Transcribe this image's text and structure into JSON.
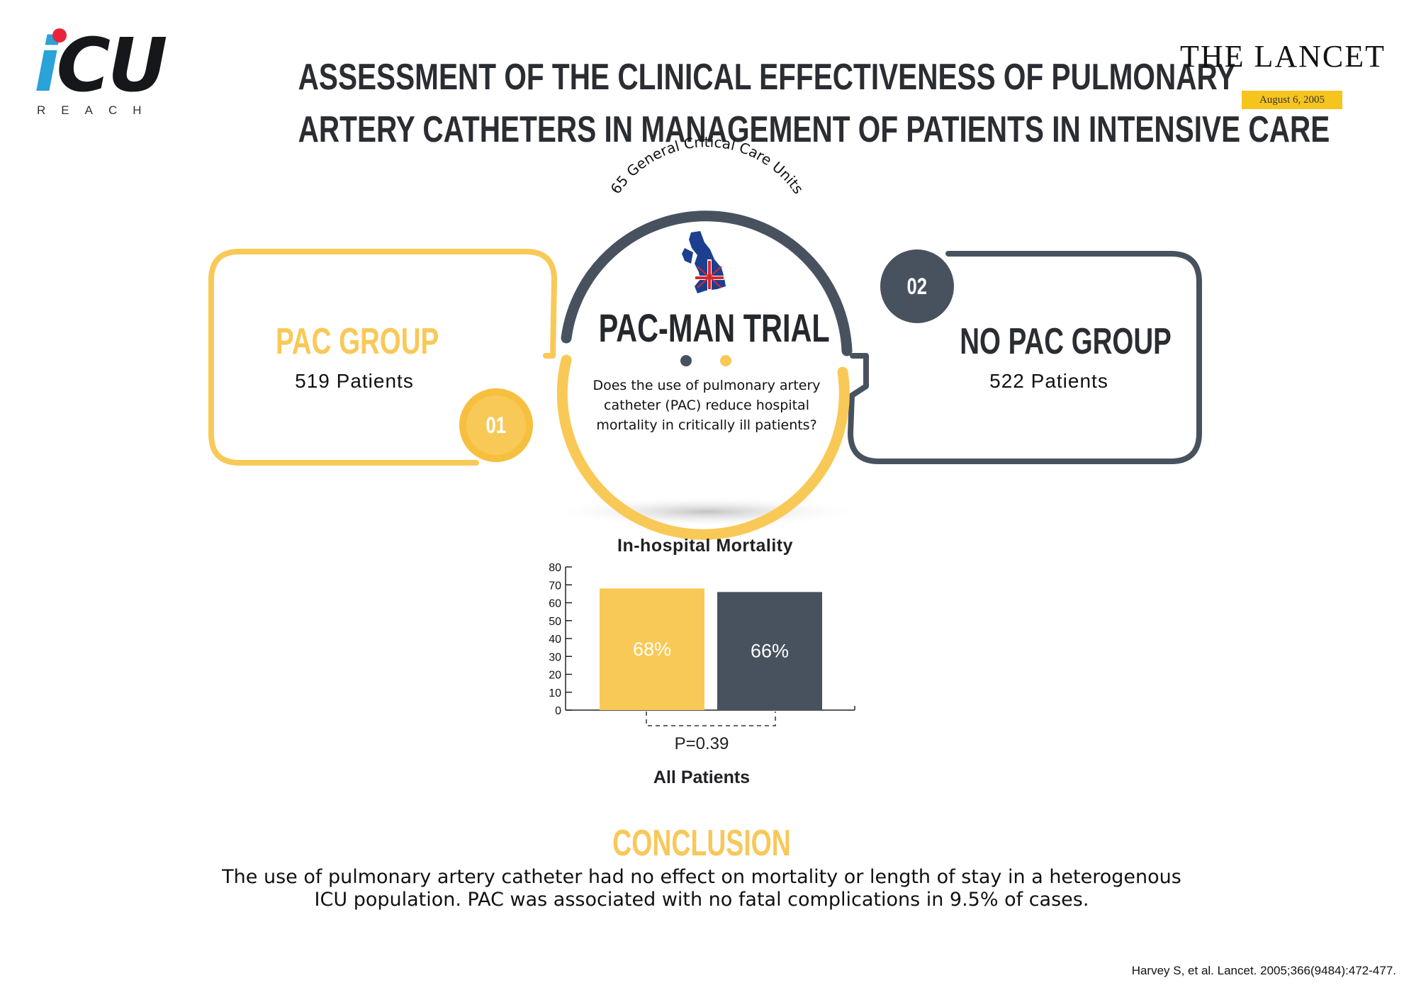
{
  "logo": {
    "mark_i": "i",
    "mark_cu": "CU",
    "sub": "REACH"
  },
  "title": {
    "line1": "ASSESSMENT OF THE CLINICAL EFFECTIVENESS OF PULMONARY",
    "line2": "ARTERY CATHETERS IN MANAGEMENT OF PATIENTS IN INTENSIVE CARE"
  },
  "journal": {
    "name": "THE LANCET",
    "date": "August 6, 2005"
  },
  "trial": {
    "arc_text": "65 General Critical Care Units",
    "name": "PAC-MAN TRIAL",
    "question": "Does the use of pulmonary artery catheter (PAC)  reduce hospital mortality in critically ill patients?",
    "flag_icon": "uk-map-flag-icon"
  },
  "groups": [
    {
      "number": "01",
      "name": "PAC GROUP",
      "patients": "519 Patients",
      "color": "#f9c957"
    },
    {
      "number": "02",
      "name": "NO PAC GROUP",
      "patients": "522 Patients",
      "color": "#48525f"
    }
  ],
  "chart_data": {
    "type": "bar",
    "title": "In-hospital Mortality",
    "xlabel": "All Patients",
    "ylabel": "",
    "ylim": [
      0,
      80
    ],
    "yticks": [
      0,
      10,
      20,
      30,
      40,
      50,
      60,
      70,
      80
    ],
    "categories": [
      "PAC GROUP",
      "NO PAC GROUP"
    ],
    "values": [
      68,
      66
    ],
    "data_labels": [
      "68%",
      "66%"
    ],
    "colors": [
      "#f9c957",
      "#48525f"
    ],
    "p_value": "P=0.39",
    "grid": false,
    "legend": "none"
  },
  "conclusion": {
    "title": "CONCLUSION",
    "text": "The use of pulmonary artery catheter had no effect on mortality or length of stay in a heterogenous ICU population. PAC was associated with no fatal complications in 9.5% of cases."
  },
  "citation": "Harvey S, et al. Lancet. 2005;366(9484):472-477."
}
